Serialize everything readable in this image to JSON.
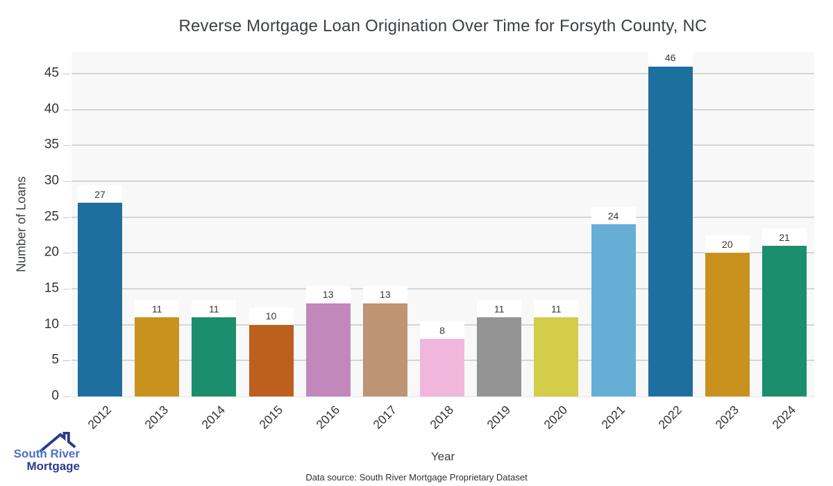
{
  "chart_data": {
    "type": "bar",
    "title": "Reverse Mortgage Loan Origination Over Time for Forsyth County, NC",
    "xlabel": "Year",
    "ylabel": "Number of Loans",
    "categories": [
      "2012",
      "2013",
      "2014",
      "2015",
      "2016",
      "2017",
      "2018",
      "2019",
      "2020",
      "2021",
      "2022",
      "2023",
      "2024"
    ],
    "values": [
      27,
      11,
      11,
      10,
      13,
      13,
      8,
      11,
      11,
      24,
      46,
      20,
      21
    ],
    "bar_colors": [
      "#1c6f9f",
      "#c9921e",
      "#1b8e6d",
      "#bd5f1d",
      "#c287bb",
      "#bd9474",
      "#f1b6dc",
      "#949494",
      "#d4cc4b",
      "#67aed7",
      "#1c6f9f",
      "#c9921e",
      "#1b8e6d"
    ],
    "ylim": [
      0,
      48
    ],
    "yticks": [
      0,
      5,
      10,
      15,
      20,
      25,
      30,
      35,
      40,
      45
    ],
    "grid": "horizontal-only",
    "legend": "none",
    "plot_background": "#f8f8f8",
    "grid_color": "#d5d5d5",
    "value_labels": "above bars"
  },
  "footer": {
    "source": "Data source: South River Mortgage Proprietary Dataset"
  },
  "logo": {
    "icon": "house-roof-icon",
    "line1": "South River",
    "line2": "Mortgage",
    "color_primary": "#4a6fc4",
    "color_secondary": "#2d3a8c"
  }
}
